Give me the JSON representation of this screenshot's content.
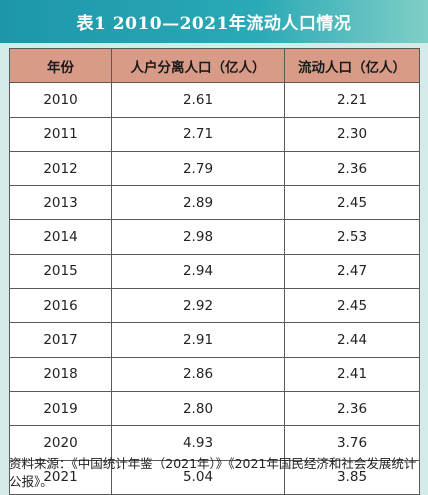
{
  "title": "表1 2010—2021年流动人口情况",
  "table": {
    "headers": [
      "年份",
      "人户分离人口（亿人）",
      "流动人口（亿人）"
    ],
    "rows": [
      [
        "2010",
        "2.61",
        "2.21"
      ],
      [
        "2011",
        "2.71",
        "2.30"
      ],
      [
        "2012",
        "2.79",
        "2.36"
      ],
      [
        "2013",
        "2.89",
        "2.45"
      ],
      [
        "2014",
        "2.98",
        "2.53"
      ],
      [
        "2015",
        "2.94",
        "2.47"
      ],
      [
        "2016",
        "2.92",
        "2.45"
      ],
      [
        "2017",
        "2.91",
        "2.44"
      ],
      [
        "2018",
        "2.86",
        "2.41"
      ],
      [
        "2019",
        "2.80",
        "2.36"
      ],
      [
        "2020",
        "4.93",
        "3.76"
      ],
      [
        "2021",
        "5.04",
        "3.85"
      ]
    ]
  },
  "source": "资料来源：《中国统计年鉴（2021年）》《2021年国民经济和社会发展统计公报》。",
  "colors": {
    "title_bg": "#1d96aa",
    "header_bg": "#d79b88",
    "page_bg": "#d5ebe9"
  }
}
